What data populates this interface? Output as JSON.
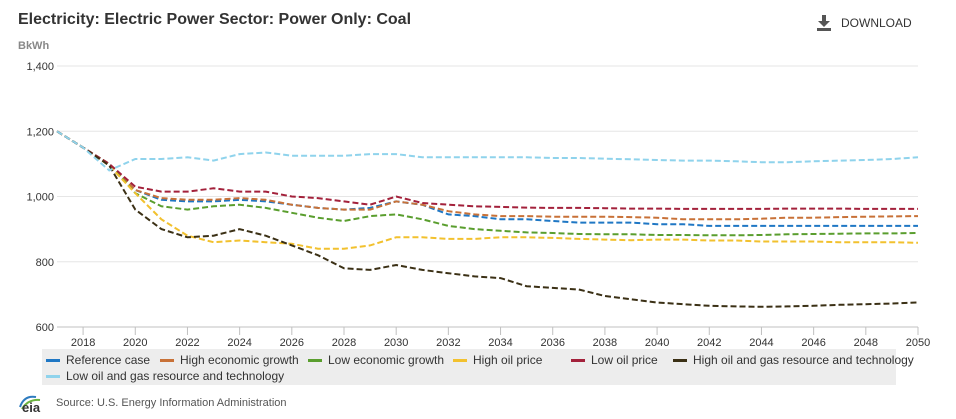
{
  "header": {
    "title": "Electricity: Electric Power Sector: Power Only: Coal",
    "download_label": "DOWNLOAD",
    "download_icon": "download-icon"
  },
  "unit_label": "BkWh",
  "footer": {
    "logo_text": "eia",
    "source": "Source: U.S. Energy Information Administration"
  },
  "colors": {
    "Reference case": "#1f77c4",
    "High economic growth": "#c87137",
    "Low economic growth": "#5a9e2e",
    "High oil price": "#f2c12e",
    "Low oil price": "#a3213b",
    "High oil and gas resource and technology": "#3b3015",
    "Low oil and gas resource and technology": "#8fd3ec"
  },
  "chart_data": {
    "type": "line",
    "title": "Electricity: Electric Power Sector: Power Only: Coal",
    "ylabel": "BkWh",
    "xlim": [
      2017,
      2050
    ],
    "ylim": [
      600,
      1400
    ],
    "x_ticks": [
      "2018",
      "2020",
      "2022",
      "2024",
      "2026",
      "2028",
      "2030",
      "2032",
      "2034",
      "2036",
      "2038",
      "2040",
      "2042",
      "2044",
      "2046",
      "2048",
      "2050"
    ],
    "y_ticks": [
      "600",
      "800",
      "1,000",
      "1,200",
      "1,400"
    ],
    "grid": true,
    "line_style": "dashed",
    "legend_position": "bottom",
    "x": [
      2017,
      2018,
      2019,
      2020,
      2021,
      2022,
      2023,
      2024,
      2025,
      2026,
      2027,
      2028,
      2029,
      2030,
      2031,
      2032,
      2033,
      2034,
      2035,
      2036,
      2037,
      2038,
      2039,
      2040,
      2041,
      2042,
      2043,
      2044,
      2045,
      2046,
      2047,
      2048,
      2049,
      2050
    ],
    "series": [
      {
        "name": "Reference case",
        "values": [
          1200,
          1150,
          1100,
          1020,
          990,
          985,
          985,
          990,
          985,
          975,
          965,
          960,
          965,
          985,
          975,
          945,
          940,
          930,
          930,
          925,
          920,
          920,
          920,
          915,
          915,
          910,
          910,
          910,
          910,
          910,
          910,
          910,
          910,
          910
        ]
      },
      {
        "name": "High economic growth",
        "values": [
          1200,
          1150,
          1100,
          1020,
          995,
          990,
          990,
          995,
          990,
          975,
          965,
          960,
          960,
          985,
          975,
          955,
          945,
          940,
          940,
          938,
          938,
          938,
          937,
          935,
          930,
          930,
          930,
          932,
          935,
          935,
          937,
          938,
          939,
          940
        ]
      },
      {
        "name": "Low economic growth",
        "values": [
          1200,
          1150,
          1100,
          1010,
          970,
          960,
          970,
          975,
          965,
          950,
          935,
          925,
          940,
          945,
          930,
          910,
          900,
          895,
          890,
          888,
          885,
          884,
          884,
          882,
          882,
          881,
          881,
          882,
          884,
          885,
          886,
          887,
          887,
          888
        ]
      },
      {
        "name": "High oil price",
        "values": [
          1200,
          1150,
          1095,
          1010,
          930,
          880,
          860,
          865,
          860,
          855,
          840,
          840,
          850,
          875,
          875,
          870,
          870,
          875,
          875,
          873,
          870,
          868,
          866,
          868,
          868,
          865,
          865,
          862,
          862,
          862,
          860,
          860,
          860,
          858
        ]
      },
      {
        "name": "Low oil price",
        "values": [
          1200,
          1150,
          1100,
          1030,
          1015,
          1015,
          1025,
          1015,
          1015,
          1000,
          995,
          985,
          975,
          1000,
          980,
          975,
          970,
          968,
          966,
          965,
          965,
          964,
          963,
          963,
          962,
          962,
          962,
          962,
          963,
          963,
          963,
          962,
          962,
          962
        ]
      },
      {
        "name": "High oil and gas resource and technology",
        "values": [
          1200,
          1150,
          1095,
          960,
          900,
          875,
          880,
          900,
          880,
          850,
          820,
          780,
          775,
          790,
          775,
          765,
          755,
          750,
          725,
          720,
          715,
          695,
          685,
          675,
          670,
          665,
          663,
          662,
          663,
          665,
          668,
          670,
          672,
          675
        ]
      },
      {
        "name": "Low oil and gas resource and technology",
        "values": [
          1200,
          1150,
          1080,
          1115,
          1115,
          1120,
          1110,
          1130,
          1135,
          1125,
          1125,
          1125,
          1130,
          1130,
          1120,
          1120,
          1120,
          1120,
          1120,
          1118,
          1118,
          1116,
          1114,
          1112,
          1110,
          1110,
          1108,
          1105,
          1105,
          1108,
          1110,
          1112,
          1115,
          1120
        ]
      }
    ]
  }
}
